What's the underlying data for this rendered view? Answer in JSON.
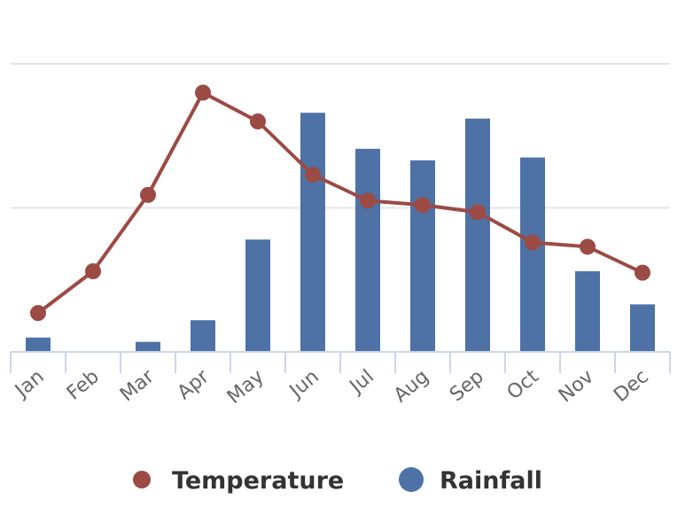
{
  "chart_data": {
    "type": "bar",
    "title": "",
    "xlabel": "",
    "ylabel": "",
    "categories": [
      "Jan",
      "Feb",
      "Mar",
      "Apr",
      "May",
      "Jun",
      "Jul",
      "Aug",
      "Sep",
      "Oct",
      "Nov",
      "Dec"
    ],
    "ylim": [
      0,
      200
    ],
    "gridlines": [
      100,
      200
    ],
    "grid": true,
    "legend_position": "bottom-center",
    "series": [
      {
        "name": "Temperature",
        "type": "line",
        "color": "#9c4a44",
        "values": [
          27,
          56,
          109,
          180,
          160,
          123,
          105,
          102,
          97,
          76,
          73,
          55
        ]
      },
      {
        "name": "Rainfall",
        "type": "bar",
        "color": "#4e72a6",
        "values": [
          10,
          0,
          7,
          22,
          78,
          166,
          141,
          133,
          162,
          135,
          56,
          33
        ]
      }
    ]
  }
}
